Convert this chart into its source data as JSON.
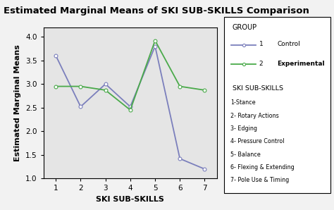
{
  "title": "Estimated Marginal Means of SKI SUB-SKILLS Comparison",
  "xlabel": "SKI SUB-SKILLS",
  "ylabel": "Estimated Marginal Means",
  "x": [
    1,
    2,
    3,
    4,
    5,
    6,
    7
  ],
  "control": [
    3.6,
    2.52,
    3.0,
    2.52,
    3.8,
    1.42,
    1.2
  ],
  "experimental": [
    2.95,
    2.95,
    2.87,
    2.45,
    3.92,
    2.95,
    2.87
  ],
  "control_color": "#7b7fbc",
  "experimental_color": "#4aaa4a",
  "ylim": [
    1.0,
    4.2
  ],
  "xlim": [
    0.5,
    7.5
  ],
  "yticks": [
    1.0,
    1.5,
    2.0,
    2.5,
    3.0,
    3.5,
    4.0
  ],
  "xticks": [
    1,
    2,
    3,
    4,
    5,
    6,
    7
  ],
  "bg_color": "#e5e5e5",
  "fig_bg_color": "#f2f2f2",
  "legend_group_title": "GROUP",
  "skills_title": "SKI SUB-SKILLS",
  "skills": [
    "1-Stance",
    "2- Rotary Actions",
    "3- Edging",
    "4- Pressure Control",
    "5- Balance",
    "6- Flexing & Extending",
    "7- Pole Use & Timing"
  ],
  "title_fontsize": 9.5,
  "axis_label_fontsize": 8,
  "tick_fontsize": 7.5
}
